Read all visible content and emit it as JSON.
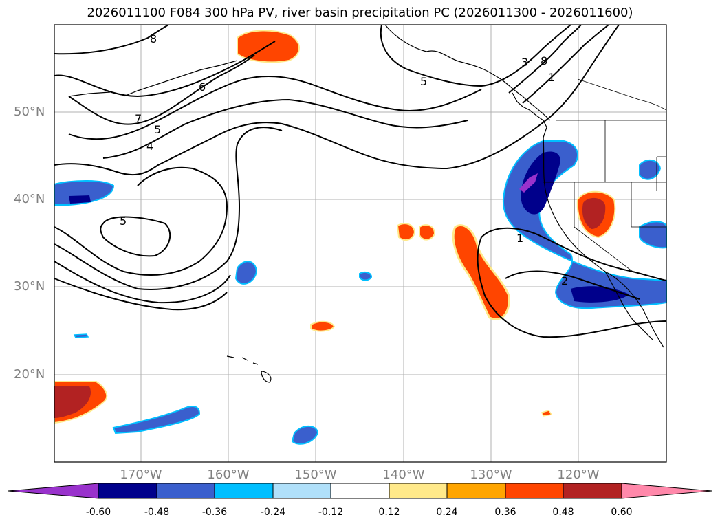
{
  "title": "2026011100 F084 300 hPa PV, river basin precipitation PC (2026011300 - 2026011600)",
  "lat_labels": [
    "50°N",
    "40°N",
    "30°N",
    "20°N"
  ],
  "lon_labels": [
    "170°W",
    "160°W",
    "150°W",
    "140°W",
    "130°W",
    "120°W"
  ],
  "contour_labels": [
    "8",
    "6",
    "7",
    "5",
    "4",
    "5",
    "5",
    "3",
    "8",
    "1",
    "1",
    "2"
  ],
  "colorbar": {
    "ticks": [
      "-0.60",
      "-0.48",
      "-0.36",
      "-0.24",
      "-0.12",
      "0.12",
      "0.24",
      "0.36",
      "0.48",
      "0.60"
    ],
    "colors": [
      "#9932cc",
      "#00008b",
      "#3a5fcd",
      "#00bfff",
      "#b0e0fa",
      "#ffffff",
      "#ffe98a",
      "#ffa500",
      "#ff4500",
      "#b22222",
      "#ff88aa"
    ]
  },
  "colors": {
    "strong_negative": "#00008b",
    "negative": "#3a5fcd",
    "weak_negative": "#00bfff",
    "weak_positive": "#ffe98a",
    "positive": "#ff4500",
    "strong_positive": "#b22222",
    "extreme_negative": "#9932cc"
  }
}
